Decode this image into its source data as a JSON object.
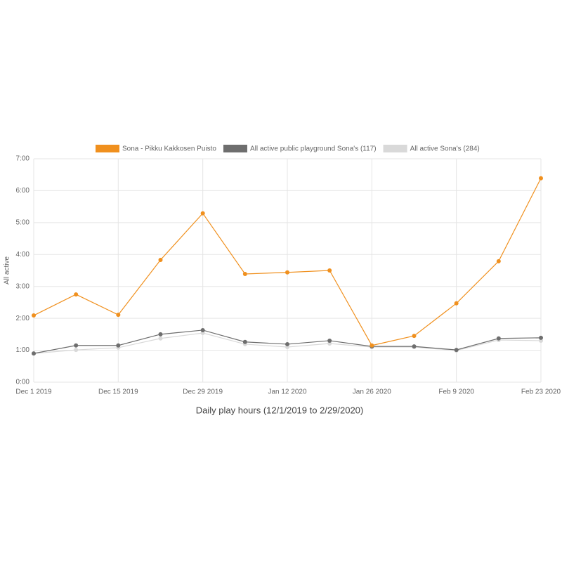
{
  "chart_data": {
    "type": "line",
    "y_label": "All active",
    "x_label": "Daily play hours (12/1/2019 to 2/29/2020)",
    "categories": [
      "Dec 1 2019",
      null,
      "Dec 15 2019",
      null,
      "Dec 29 2019",
      null,
      "Jan 12 2020",
      null,
      "Jan 26 2020",
      null,
      "Feb 9 2020",
      null,
      "Feb 23 2020"
    ],
    "series": [
      {
        "name": "Sona - Pikku Kakkosen Puisto",
        "color": "#f0901e",
        "values": [
          2.09,
          2.75,
          2.11,
          3.83,
          5.29,
          3.39,
          3.44,
          3.5,
          1.15,
          1.45,
          2.47,
          3.79,
          6.39
        ]
      },
      {
        "name": "All active public playground Sona's (117)",
        "color": "#6e6e6e",
        "values": [
          0.9,
          1.15,
          1.15,
          1.5,
          1.63,
          1.26,
          1.19,
          1.3,
          1.12,
          1.12,
          1.01,
          1.37,
          1.39
        ]
      },
      {
        "name": "All active Sona's (284)",
        "color": "#d9d9d9",
        "values": [
          0.9,
          1.01,
          1.08,
          1.37,
          1.54,
          1.19,
          1.1,
          1.21,
          1.1,
          1.1,
          0.99,
          1.32,
          1.3
        ]
      }
    ],
    "ylim": [
      0,
      7
    ],
    "yticks": [
      {
        "value": 0,
        "label": "0:00"
      },
      {
        "value": 1,
        "label": "1:00"
      },
      {
        "value": 2,
        "label": "2:00"
      },
      {
        "value": 3,
        "label": "3:00"
      },
      {
        "value": 4,
        "label": "4:00"
      },
      {
        "value": 5,
        "label": "5:00"
      },
      {
        "value": 6,
        "label": "6:00"
      },
      {
        "value": 7,
        "label": "7:00"
      }
    ],
    "grid": true,
    "legend": "top"
  }
}
